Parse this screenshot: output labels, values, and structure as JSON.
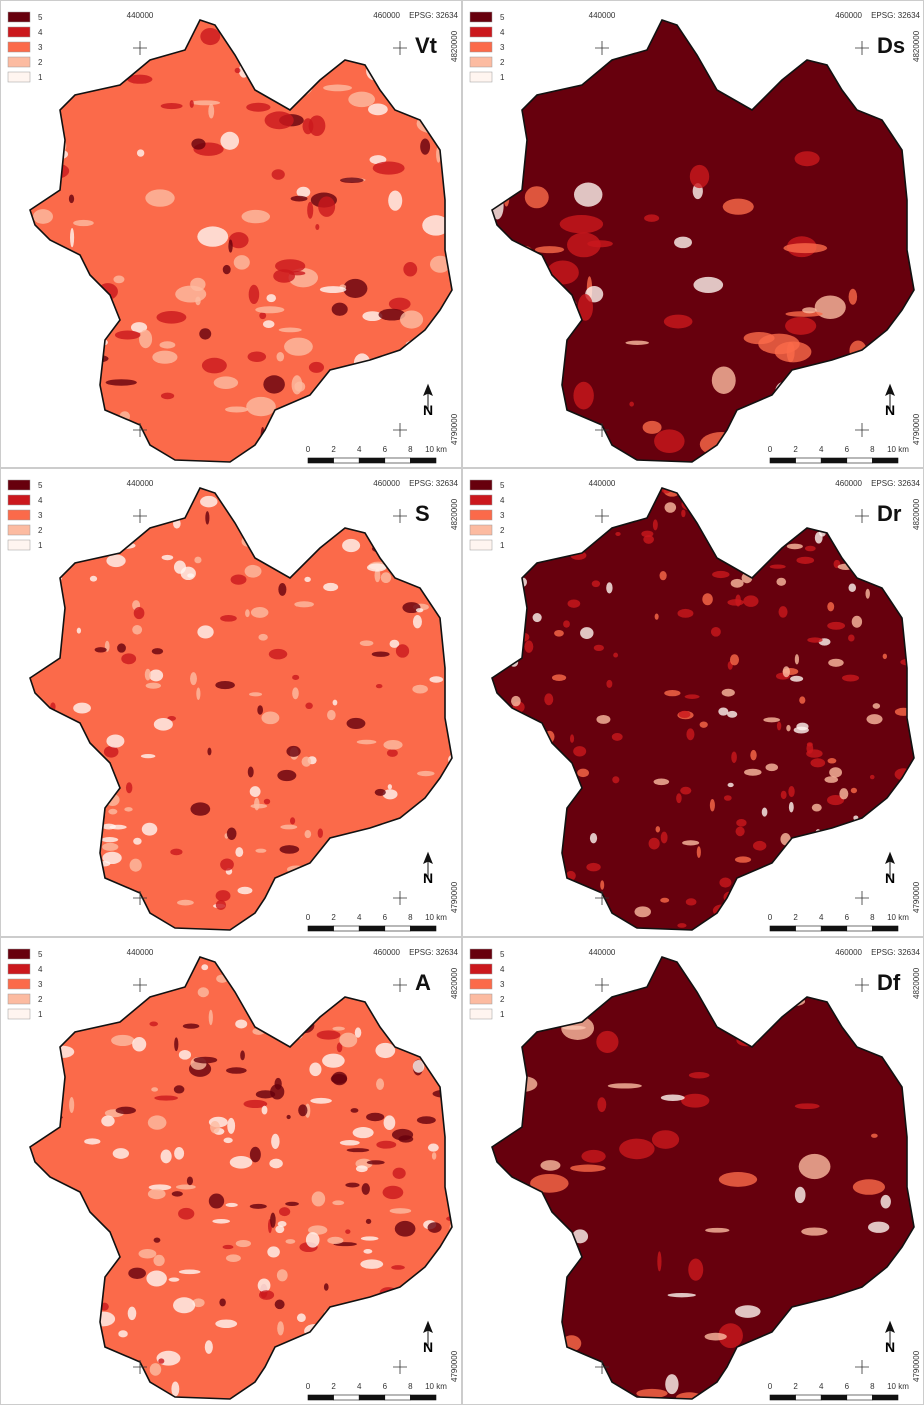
{
  "legend": {
    "classes": [
      {
        "label": "5",
        "color": "#67000d"
      },
      {
        "label": "4",
        "color": "#cb181d"
      },
      {
        "label": "3",
        "color": "#fb6a4a"
      },
      {
        "label": "2",
        "color": "#fcbba1"
      },
      {
        "label": "1",
        "color": "#fff5f0"
      }
    ]
  },
  "coordinates": {
    "x_left": "440000",
    "x_right": "460000",
    "epsg": "EPSG: 32634",
    "y_top": "4820000",
    "y_bottom": "4790000"
  },
  "north": "N",
  "scale": [
    "0",
    "2",
    "4",
    "6",
    "8",
    "10 km"
  ],
  "panels": [
    {
      "label": "Vt"
    },
    {
      "label": "Ds"
    },
    {
      "label": "S"
    },
    {
      "label": "Dr"
    },
    {
      "label": "A"
    },
    {
      "label": "Df"
    }
  ]
}
